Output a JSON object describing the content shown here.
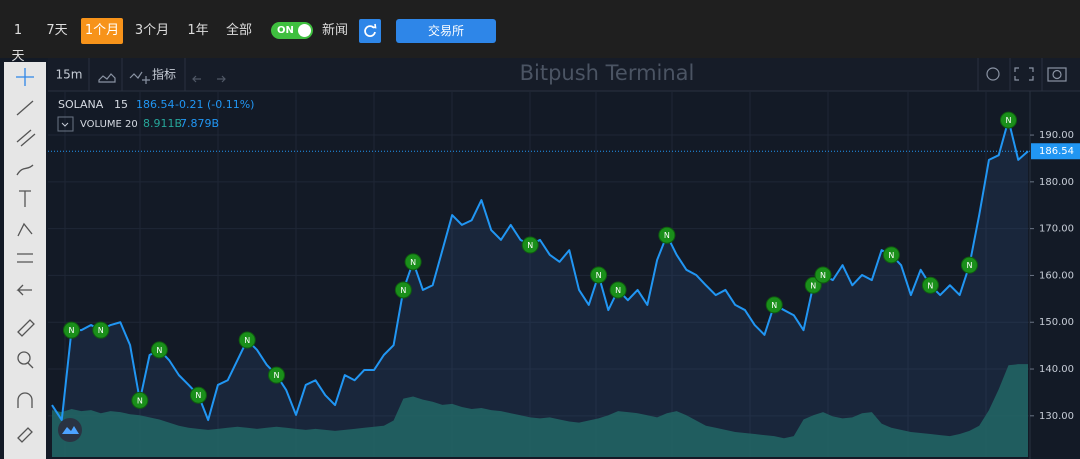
{
  "top_bar": {
    "ranges": [
      "1天",
      "7天",
      "1个月",
      "3个月",
      "1年",
      "全部"
    ],
    "active_range": 2,
    "news_toggle": "ON",
    "news_label": "新闻",
    "exchange_button": "交易所"
  },
  "chart_toolbar": {
    "interval": "15m",
    "indicators": "指标",
    "watermark": "Bitpush Terminal"
  },
  "legend": {
    "symbol": "SOLANA",
    "interval": "15",
    "change": "-0.21 (-0.11%)",
    "volume_label": "VOLUME 20",
    "volume_value": "8.911B",
    "volume_ma": "7.879B"
  },
  "chart_data": {
    "type": "line",
    "series": [
      {
        "name": "SOLANA",
        "color": "#2196f3",
        "values": [
          132.3,
          129.1,
          148.3,
          148.3,
          149.4,
          148.3,
          149.4,
          150.0,
          145.1,
          133.3,
          143.0,
          144.1,
          141.9,
          138.7,
          136.6,
          134.4,
          129.1,
          136.6,
          137.6,
          141.9,
          146.2,
          144.1,
          140.9,
          138.7,
          135.5,
          130.2,
          136.6,
          137.6,
          134.4,
          132.3,
          138.7,
          137.6,
          139.8,
          139.8,
          143.0,
          145.1,
          156.9,
          162.9,
          156.9,
          157.9,
          165.4,
          172.9,
          170.8,
          171.8,
          176.1,
          169.7,
          167.6,
          170.8,
          167.6,
          166.5,
          167.6,
          164.4,
          162.9,
          165.4,
          156.9,
          153.7,
          160.1,
          152.6,
          156.9,
          154.7,
          156.9,
          153.7,
          163.3,
          168.6,
          164.4,
          161.2,
          160.1,
          157.9,
          155.8,
          156.9,
          153.7,
          152.6,
          149.4,
          147.3,
          153.7,
          152.6,
          151.5,
          148.3,
          157.9,
          160.1,
          159.0,
          162.2,
          157.9,
          160.1,
          159.0,
          165.4,
          164.4,
          162.2,
          155.8,
          161.2,
          157.9,
          155.8,
          157.9,
          155.8,
          162.2,
          172.9,
          184.7,
          185.7,
          193.2,
          184.7,
          186.54
        ]
      },
      {
        "name": "VOLUME",
        "color": "#1f6b5c",
        "axis": "y2",
        "values": [
          4.5,
          4.3,
          4.6,
          4.4,
          4.5,
          4.2,
          4.4,
          4.3,
          4.1,
          4.0,
          3.8,
          3.6,
          3.3,
          3.0,
          2.8,
          2.7,
          2.6,
          2.7,
          2.8,
          2.9,
          2.8,
          2.7,
          2.8,
          2.9,
          2.8,
          2.7,
          2.6,
          2.7,
          2.6,
          2.5,
          2.6,
          2.7,
          2.8,
          2.9,
          3.0,
          3.5,
          5.6,
          5.8,
          5.5,
          5.3,
          5.0,
          5.1,
          4.8,
          4.6,
          4.7,
          4.5,
          4.4,
          4.2,
          4.0,
          3.8,
          3.7,
          3.8,
          3.6,
          3.4,
          3.3,
          3.5,
          3.7,
          4.0,
          4.4,
          4.3,
          4.2,
          4.0,
          3.8,
          4.2,
          4.4,
          4.0,
          3.5,
          3.0,
          2.8,
          2.6,
          2.4,
          2.3,
          2.2,
          2.1,
          2.0,
          1.8,
          2.0,
          3.6,
          4.0,
          4.3,
          3.9,
          3.7,
          3.8,
          4.2,
          4.3,
          3.2,
          2.8,
          2.6,
          2.4,
          2.3,
          2.2,
          2.1,
          2.0,
          2.2,
          2.5,
          3.0,
          4.5,
          6.5,
          8.8,
          8.9,
          8.9
        ]
      }
    ],
    "ylim": [
      121.2,
      199.2
    ],
    "yticks": [
      {
        "value": 130,
        "label": "130.00"
      },
      {
        "value": 140,
        "label": "140.00"
      },
      {
        "value": 150,
        "label": "150.00"
      },
      {
        "value": 160,
        "label": "160.00"
      },
      {
        "value": 170,
        "label": "170.00"
      },
      {
        "value": 180,
        "label": "180.00"
      },
      {
        "value": 190,
        "label": "190.00"
      }
    ],
    "y2lim": [
      0,
      35
    ],
    "grid": true,
    "news": {
      "label": "N",
      "points": [
        2,
        5,
        9,
        11,
        15,
        20,
        23,
        36,
        37,
        49,
        56,
        58,
        63,
        74,
        78,
        79,
        86,
        90,
        94,
        98
      ]
    }
  }
}
